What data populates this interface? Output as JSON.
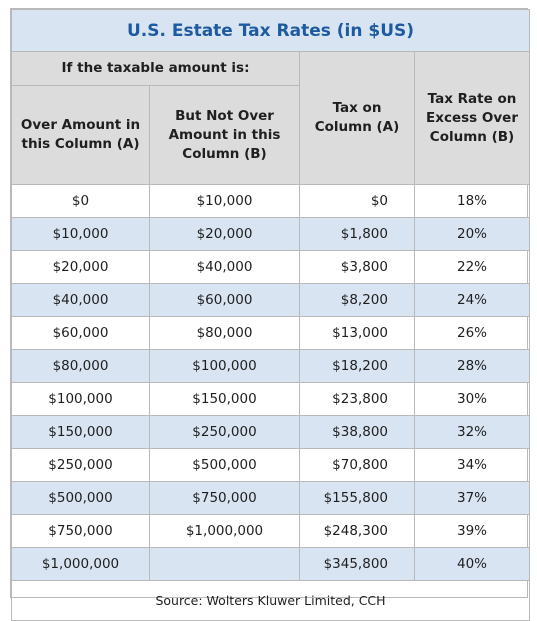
{
  "title": "U.S. Estate Tax Rates (in $US)",
  "header": {
    "group_label": "If the taxable amount is:",
    "col_a_line1": "Over Amount in",
    "col_a_line2": "this Column (A)",
    "col_b_line1": "But Not Over",
    "col_b_line2": "Amount in this",
    "col_b_line3": "Column (B)",
    "col_tax_line1": "Tax on",
    "col_tax_line2": "Column (A)",
    "col_rate_line1": "Tax Rate on",
    "col_rate_line2": "Excess Over",
    "col_rate_line3": "Column (B)"
  },
  "rows": [
    {
      "a": "$0",
      "b": "$10,000",
      "tax": "$0",
      "rate": "18%"
    },
    {
      "a": "$10,000",
      "b": "$20,000",
      "tax": "$1,800",
      "rate": "20%"
    },
    {
      "a": "$20,000",
      "b": "$40,000",
      "tax": "$3,800",
      "rate": "22%"
    },
    {
      "a": "$40,000",
      "b": "$60,000",
      "tax": "$8,200",
      "rate": "24%"
    },
    {
      "a": "$60,000",
      "b": "$80,000",
      "tax": "$13,000",
      "rate": "26%"
    },
    {
      "a": "$80,000",
      "b": "$100,000",
      "tax": "$18,200",
      "rate": "28%"
    },
    {
      "a": "$100,000",
      "b": "$150,000",
      "tax": "$23,800",
      "rate": "30%"
    },
    {
      "a": "$150,000",
      "b": "$250,000",
      "tax": "$38,800",
      "rate": "32%"
    },
    {
      "a": "$250,000",
      "b": "$500,000",
      "tax": "$70,800",
      "rate": "34%"
    },
    {
      "a": "$500,000",
      "b": "$750,000",
      "tax": "$155,800",
      "rate": "37%"
    },
    {
      "a": "$750,000",
      "b": "$1,000,000",
      "tax": "$248,300",
      "rate": "39%"
    },
    {
      "a": "$1,000,000",
      "b": "",
      "tax": "$345,800",
      "rate": "40%"
    }
  ],
  "source": "Source: Wolters Kluwer Limited, CCH",
  "colors": {
    "title_text": "#1e5aa0",
    "title_bg": "#d8e4f2",
    "header_bg": "#dcdcdc",
    "alt_row_bg": "#d8e4f2",
    "border": "#b9b9b9"
  }
}
